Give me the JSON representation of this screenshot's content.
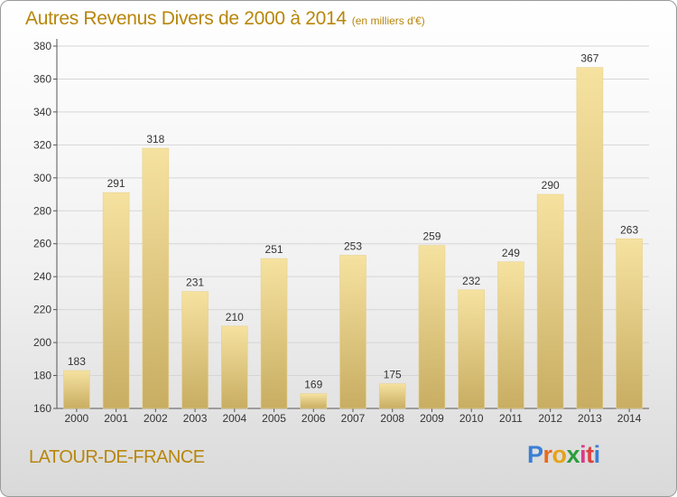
{
  "title": {
    "main": "Autres Revenus Divers de 2000 à 2014",
    "unit": "(en milliers d'€)"
  },
  "location": "LATOUR-DE-FRANCE",
  "logo": {
    "text": "Proxiti",
    "letters": [
      "P",
      "r",
      "o",
      "x",
      "i",
      "t",
      "i"
    ],
    "colors": [
      "#3a7fd5",
      "#e86b1c",
      "#e6a21a",
      "#2a9d3a",
      "#d93b8a",
      "#e04040",
      "#3a7fd5"
    ]
  },
  "colors": {
    "accent": "#b8860b",
    "bar_light": "#f6e2a0",
    "bar_dark": "#c8ad62",
    "grid": "#d8d8d8"
  },
  "chart_data": {
    "type": "bar",
    "title": "Autres Revenus Divers de 2000 à 2014",
    "subtitle": "(en milliers d'€)",
    "xlabel": "",
    "ylabel": "",
    "categories": [
      "2000",
      "2001",
      "2002",
      "2003",
      "2004",
      "2005",
      "2006",
      "2007",
      "2008",
      "2009",
      "2010",
      "2011",
      "2012",
      "2013",
      "2014"
    ],
    "values": [
      183,
      291,
      318,
      231,
      210,
      251,
      169,
      253,
      175,
      259,
      232,
      249,
      290,
      367,
      263
    ],
    "ylim": [
      160,
      380
    ],
    "yticks": [
      160,
      180,
      200,
      220,
      240,
      260,
      280,
      300,
      320,
      340,
      360,
      380
    ],
    "grid": true,
    "legend": "none"
  }
}
